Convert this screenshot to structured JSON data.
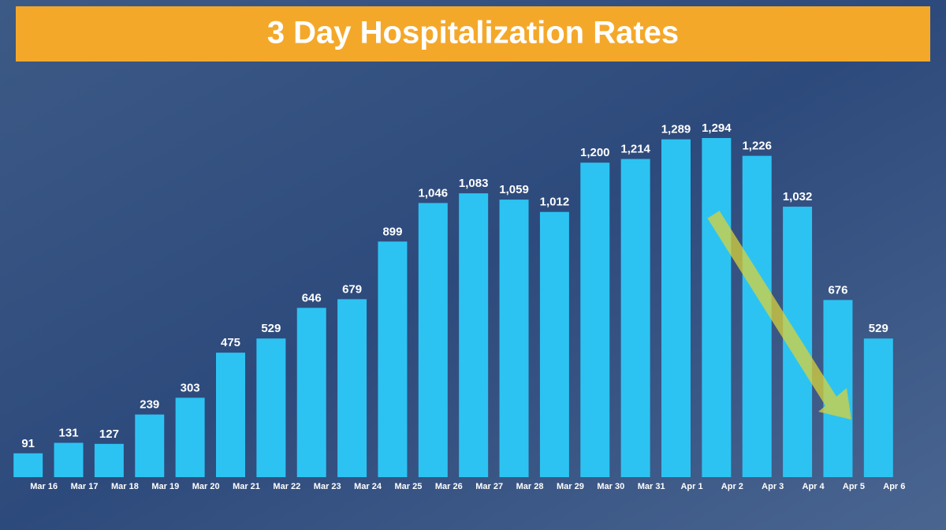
{
  "chart_data": {
    "type": "bar",
    "title": "3 Day Hospitalization Rates",
    "categories": [
      "Mar 16",
      "Mar 17",
      "Mar 18",
      "Mar 19",
      "Mar 20",
      "Mar 21",
      "Mar 22",
      "Mar 23",
      "Mar 24",
      "Mar 25",
      "Mar 26",
      "Mar 27",
      "Mar 28",
      "Mar 29",
      "Mar 30",
      "Mar 31",
      "Apr 1",
      "Apr 2",
      "Apr 3",
      "Apr 4",
      "Apr 5",
      "Apr 6"
    ],
    "values": [
      91,
      131,
      127,
      239,
      303,
      475,
      529,
      646,
      679,
      899,
      1046,
      1083,
      1059,
      1012,
      1200,
      1214,
      1289,
      1294,
      1226,
      1032,
      676,
      529
    ],
    "value_labels": [
      "91",
      "131",
      "127",
      "239",
      "303",
      "475",
      "529",
      "646",
      "679",
      "899",
      "1,046",
      "1,083",
      "1,059",
      "1,012",
      "1,200",
      "1,214",
      "1,289",
      "1,294",
      "1,226",
      "1,032",
      "676",
      "529"
    ],
    "color": "#2cc3f2"
  }
}
